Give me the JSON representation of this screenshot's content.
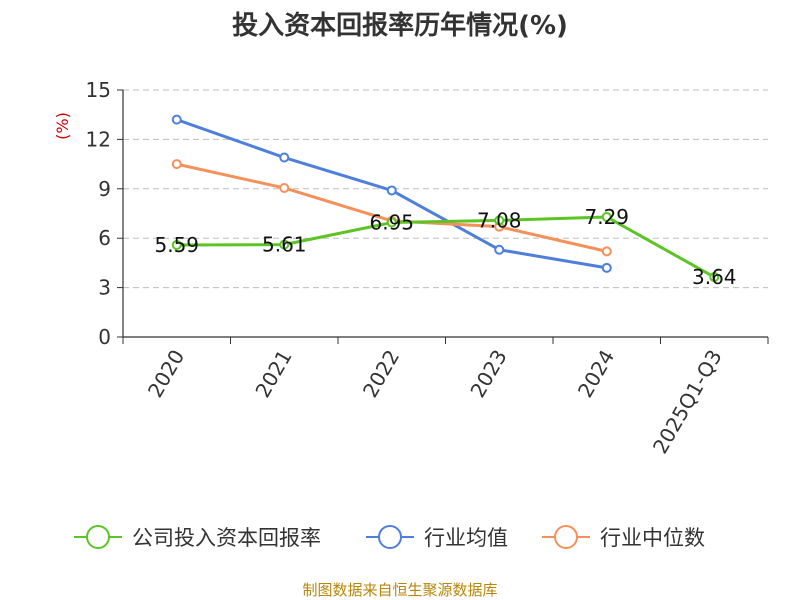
{
  "chart_data": {
    "type": "line",
    "title": "投入资本回报率历年情况(%)",
    "unit_label": "(%)",
    "categories": [
      "2020",
      "2021",
      "2022",
      "2023",
      "2024",
      "2025Q1-Q3"
    ],
    "ylim": [
      0,
      15
    ],
    "yticks": [
      "0",
      "3",
      "6",
      "9",
      "12",
      "15"
    ],
    "grid": true,
    "legend_position": "bottom",
    "series": [
      {
        "name": "公司投入资本回报率",
        "color": "#5cc424",
        "values": [
          5.59,
          5.61,
          6.95,
          7.08,
          7.29,
          3.64
        ],
        "labels": [
          "5.59",
          "5.61",
          "6.95",
          "7.08",
          "7.29",
          "3.64"
        ]
      },
      {
        "name": "行业均值",
        "color": "#4d7fdb",
        "values": [
          13.2,
          10.9,
          8.9,
          5.3,
          4.2,
          null
        ]
      },
      {
        "name": "行业中位数",
        "color": "#f5905a",
        "values": [
          10.5,
          9.05,
          7.05,
          6.7,
          5.2,
          null
        ]
      }
    ]
  },
  "source_text": "制图数据来自恒生聚源数据库"
}
